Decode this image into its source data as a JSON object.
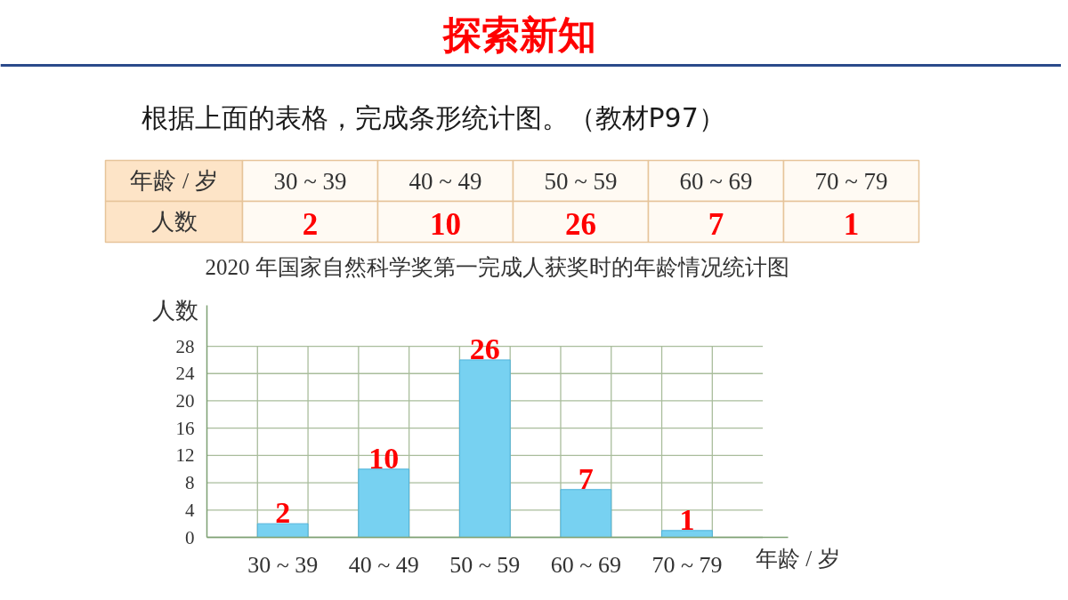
{
  "chart_data": [
    {
      "type": "other",
      "annotations": [
        "探索新知",
        "根据上面的表格，完成条形统计图。（教材P97）"
      ],
      "xlabel": "年龄 / 岁",
      "ylabel": "人数",
      "categories": [
        "30 ~ 39",
        "40 ~ 49",
        "50 ~ 59",
        "60 ~ 69",
        "70 ~ 79"
      ],
      "values": [
        2,
        10,
        26,
        7,
        1
      ],
      "data_labels": true
    },
    {
      "type": "bar",
      "title": "2020 年国家自然科学奖第一完成人获奖时的年龄情况统计图",
      "xlabel": "年龄 / 岁",
      "ylabel": "人数",
      "categories": [
        "30 ~ 39",
        "40 ~ 49",
        "50 ~ 59",
        "60 ~ 69",
        "70 ~ 79"
      ],
      "values": [
        2,
        10,
        26,
        7,
        1
      ],
      "color": "#77d1f1",
      "ylim": [
        0,
        34
      ],
      "yticks": [
        0,
        4,
        8,
        12,
        16,
        20,
        24,
        28
      ],
      "grid": true,
      "data_labels": true
    }
  ]
}
